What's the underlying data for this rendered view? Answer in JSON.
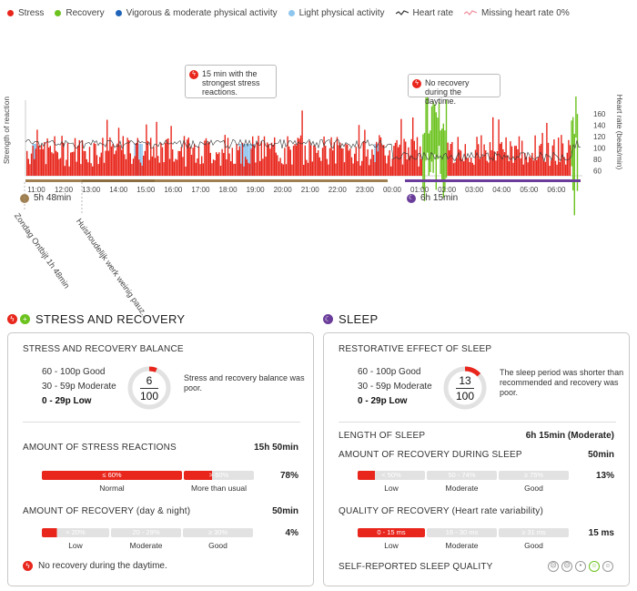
{
  "legend": [
    {
      "label": "Stress",
      "color": "#e8261c",
      "kind": "dot"
    },
    {
      "label": "Recovery",
      "color": "#6cc21f",
      "kind": "dot"
    },
    {
      "label": "Vigorous & moderate physical activity",
      "color": "#1f64b8",
      "kind": "dot"
    },
    {
      "label": "Light physical activity",
      "color": "#8ec6ee",
      "kind": "dot"
    },
    {
      "label": "Heart rate",
      "color": "#333333",
      "kind": "line"
    },
    {
      "label": "Missing heart rate 0%",
      "color": "#f08a9a",
      "kind": "line"
    }
  ],
  "chart": {
    "y_axis_left": "Strength of reaction",
    "y_axis_right": "Heart rate (beats/min)",
    "hr_ticks": [
      "160",
      "140",
      "120",
      "100",
      "80",
      "60"
    ],
    "time_ticks": [
      "11:00",
      "12:00",
      "13:00",
      "14:00",
      "15:00",
      "16:00",
      "17:00",
      "18:00",
      "19:00",
      "20:00",
      "21:00",
      "22:00",
      "23:00",
      "00:00",
      "01:00",
      "02:00",
      "03:00",
      "04:00",
      "05:00",
      "06:00"
    ],
    "day_duration": "5h 48min",
    "sleep_duration": "6h 15min",
    "activity_labels": [
      "Zondag Ontbijt 1h 48min",
      "Huishoudelijk werk weinig pauz..."
    ],
    "callout_stress": "15 min with the strongest stress reactions.",
    "callout_recovery": "No recovery during the daytime."
  },
  "stress": {
    "heading": "STRESS AND RECOVERY",
    "balance_title": "STRESS AND RECOVERY BALANCE",
    "scale": [
      "60 - 100p Good",
      "30 - 59p Moderate",
      "0 - 29p Low"
    ],
    "score": "6",
    "score_max": "100",
    "score_value": 6,
    "description": "Stress and recovery balance was poor.",
    "amount_stress_title": "AMOUNT OF STRESS REACTIONS",
    "amount_stress_value": "15h 50min",
    "stress_bar_left": "≤ 60%",
    "stress_bar_right": "> 60%",
    "stress_bar_label_left": "Normal",
    "stress_bar_label_right": "More than usual",
    "stress_pct": "78%",
    "recovery_title": "AMOUNT OF RECOVERY (day & night)",
    "recovery_value": "50min",
    "rec_bar": [
      "< 20%",
      "20 - 29%",
      "≥ 30%"
    ],
    "rec_labels": [
      "Low",
      "Moderate",
      "Good"
    ],
    "rec_pct": "4%",
    "note": "No recovery during the daytime."
  },
  "sleep": {
    "heading": "SLEEP",
    "restorative_title": "RESTORATIVE EFFECT OF SLEEP",
    "scale": [
      "60 - 100p Good",
      "30 - 59p Moderate",
      "0 - 29p Low"
    ],
    "score": "13",
    "score_max": "100",
    "score_value": 13,
    "description": "The sleep period was shorter than recommended and recovery was poor.",
    "length_title": "LENGTH OF SLEEP",
    "length_value": "6h 15min (Moderate)",
    "amount_rec_title": "AMOUNT OF RECOVERY DURING SLEEP",
    "amount_rec_value": "50min",
    "rec_bar": [
      "< 50%",
      "50 - 74%",
      "≥ 75%"
    ],
    "rec_labels": [
      "Low",
      "Moderate",
      "Good"
    ],
    "rec_pct": "13%",
    "quality_title": "QUALITY OF RECOVERY (Heart rate variability)",
    "quality_bar": [
      "0 - 15 ms",
      "16 - 30 ms",
      "≥ 31 ms"
    ],
    "quality_labels": [
      "Low",
      "Moderate",
      "Good"
    ],
    "quality_value": "15 ms",
    "self_title": "SELF-REPORTED SLEEP QUALITY"
  }
}
